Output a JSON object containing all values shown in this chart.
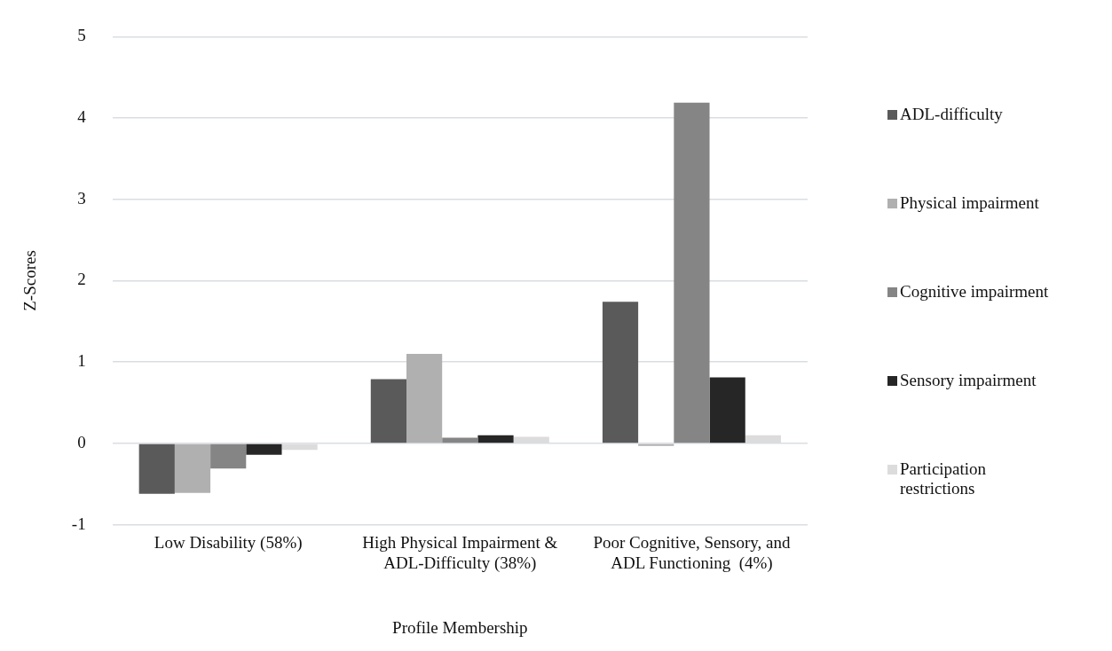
{
  "chart_data": {
    "type": "bar",
    "xlabel": "Profile Membership",
    "ylabel": "Z-Scores",
    "categories": [
      "Low Disability (58%)",
      "High Physical Impairment & ADL-Difficulty (38%)",
      "Poor Cognitive, Sensory, and ADL Functioning  (4%)"
    ],
    "series": [
      {
        "name": "ADL-difficulty",
        "color": "#5a5a5a",
        "values": [
          -0.62,
          0.79,
          1.74
        ]
      },
      {
        "name": "Physical impairment",
        "color": "#b0b0b0",
        "values": [
          -0.61,
          1.1,
          -0.03
        ]
      },
      {
        "name": "Cognitive impairment",
        "color": "#858585",
        "values": [
          -0.31,
          0.07,
          4.19
        ]
      },
      {
        "name": "Sensory impairment",
        "color": "#262626",
        "values": [
          -0.14,
          0.1,
          0.81
        ]
      },
      {
        "name": "Participation restrictions",
        "color": "#dcdcdc",
        "values": [
          -0.08,
          0.08,
          0.1
        ]
      }
    ],
    "ylim": [
      -1,
      5
    ],
    "yticks": [
      -1,
      0,
      1,
      2,
      3,
      4,
      5
    ],
    "grid": "y",
    "legend": "right"
  }
}
